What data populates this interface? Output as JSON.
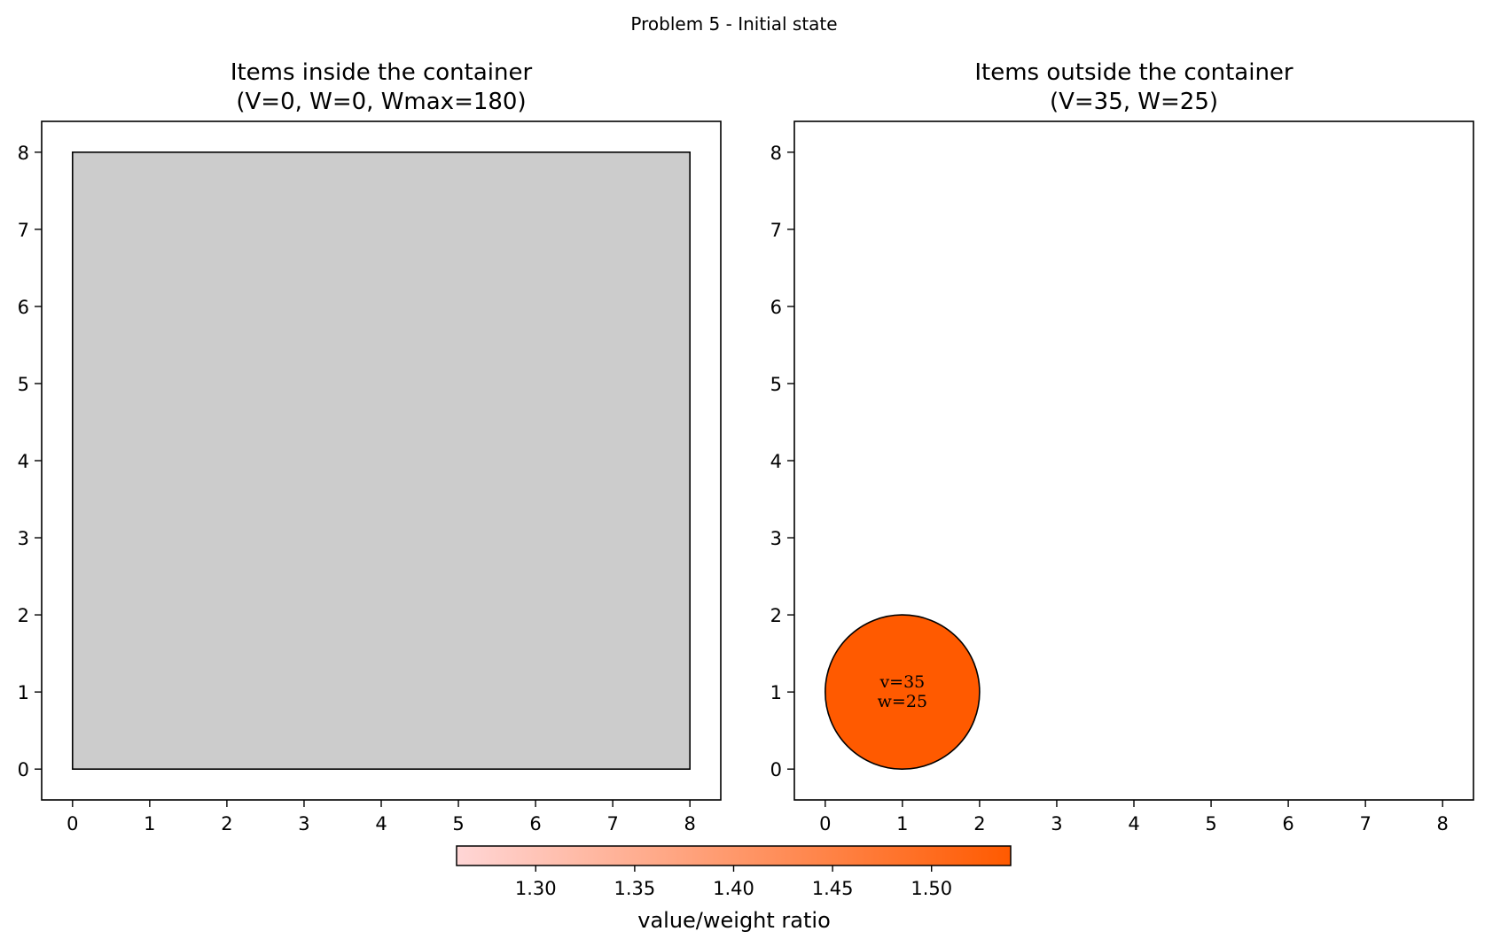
{
  "figure": {
    "suptitle": "Problem 5 - Initial state"
  },
  "chart_data": [
    {
      "type": "scatter",
      "title_lines": [
        "Items inside the container",
        "(V=0, W=0, Wmax=180)"
      ],
      "xlim": [
        -0.4,
        8.4
      ],
      "ylim": [
        -0.4,
        8.4
      ],
      "x_ticks": [
        0,
        1,
        2,
        3,
        4,
        5,
        6,
        7,
        8
      ],
      "y_ticks": [
        0,
        1,
        2,
        3,
        4,
        5,
        6,
        7,
        8
      ],
      "grid": false,
      "container": {
        "x": [
          0,
          8
        ],
        "y": [
          0,
          8
        ],
        "fill": "#cccccc"
      },
      "items": []
    },
    {
      "type": "scatter",
      "title_lines": [
        "Items outside the container",
        "(V=35, W=25)"
      ],
      "xlim": [
        -0.4,
        8.4
      ],
      "ylim": [
        -0.4,
        8.4
      ],
      "x_ticks": [
        0,
        1,
        2,
        3,
        4,
        5,
        6,
        7,
        8
      ],
      "y_ticks": [
        0,
        1,
        2,
        3,
        4,
        5,
        6,
        7,
        8
      ],
      "grid": false,
      "items": [
        {
          "shape": "circle",
          "cx": 1,
          "cy": 1,
          "r": 1,
          "value": 35,
          "weight": 25,
          "color": "#ff5a00",
          "label_lines": [
            "v=35",
            "w=25"
          ]
        }
      ]
    }
  ],
  "colorbar": {
    "label": "value/weight ratio",
    "range": [
      1.26,
      1.54
    ],
    "ticks": [
      1.3,
      1.35,
      1.4,
      1.45,
      1.5
    ],
    "tick_labels": [
      "1.30",
      "1.35",
      "1.40",
      "1.45",
      "1.50"
    ],
    "color_low": "#ffd6d6",
    "color_high": "#ff5a00",
    "orientation": "horizontal"
  }
}
